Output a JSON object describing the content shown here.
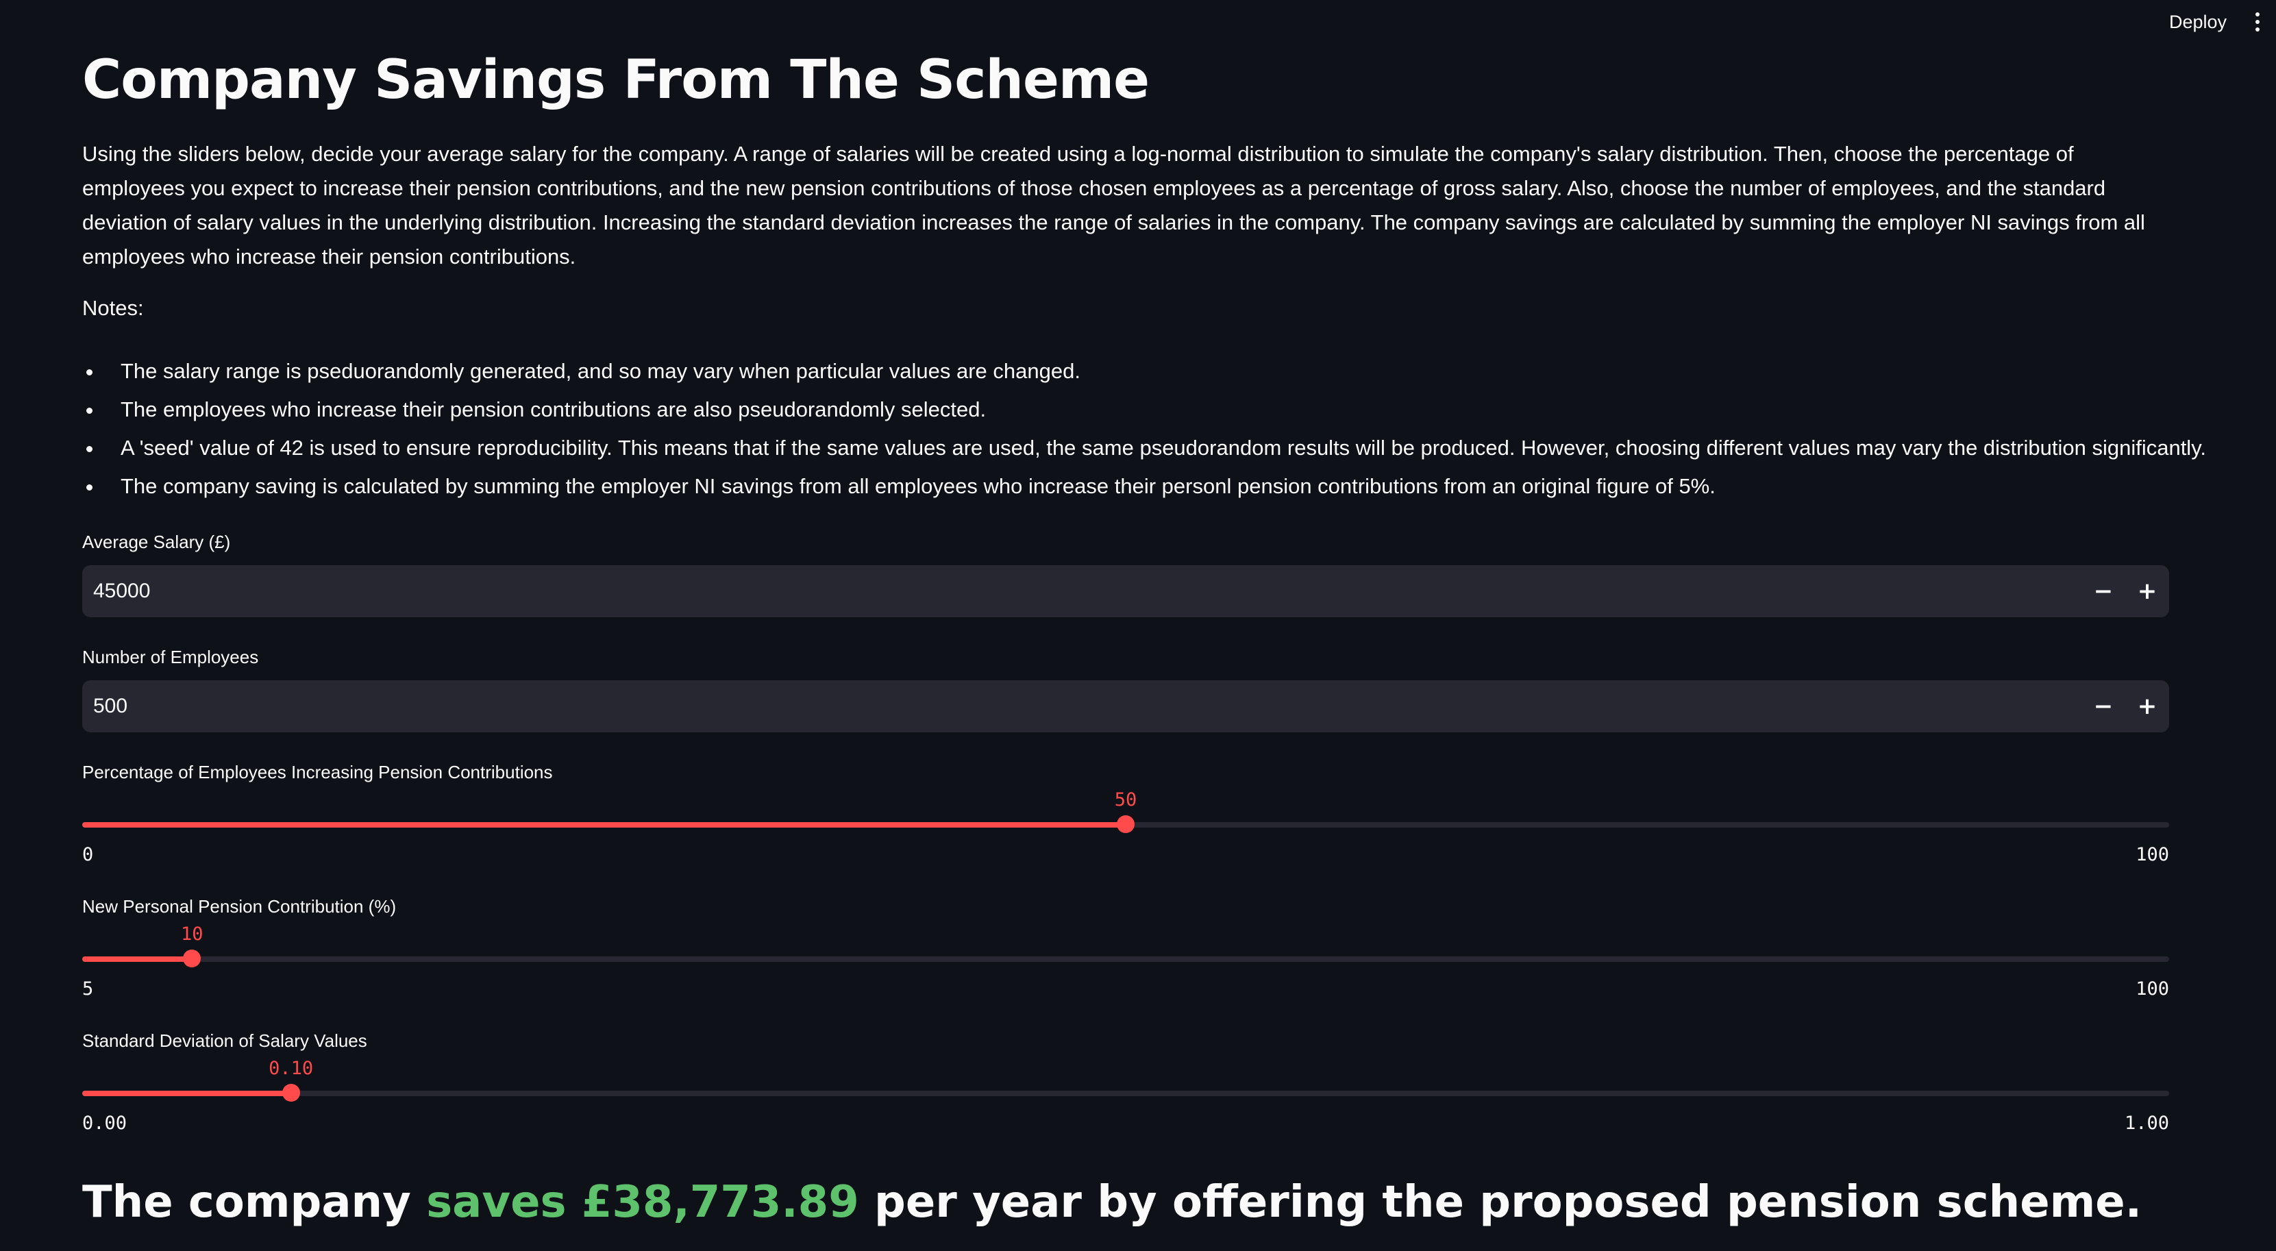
{
  "header": {
    "deploy_label": "Deploy",
    "menu_icon": "kebab-menu-icon"
  },
  "page": {
    "title": "Company Savings From The Scheme",
    "intro": "Using the sliders below, decide your average salary for the company. A range of salaries will be created using a log-normal distribution to simulate the company's salary distribution. Then, choose the percentage of employees you expect to increase their pension contributions, and the new pension contributions of those chosen employees as a percentage of gross salary. Also, choose the number of employees, and the standard deviation of salary values in the underlying distribution. Increasing the standard deviation increases the range of salaries in the company. The company savings are calculated by summing the employer NI savings from all employees who increase their pension contributions.",
    "notes_label": "Notes:",
    "notes": [
      "The salary range is pseduorandomly generated, and so may vary when particular values are changed.",
      "The employees who increase their pension contributions are also pseudorandomly selected.",
      "A 'seed' value of 42 is used to ensure reproducibility. This means that if the same values are used, the same pseudorandom results will be produced. However, choosing different values may vary the distribution significantly.",
      "The company saving is calculated by summing the employer NI savings from all employees who increase their personl pension contributions from an original figure of 5%."
    ]
  },
  "inputs": {
    "average_salary": {
      "label": "Average Salary (£)",
      "value": "45000",
      "minus_label": "−",
      "plus_label": "+"
    },
    "num_employees": {
      "label": "Number of Employees",
      "value": "500",
      "minus_label": "−",
      "plus_label": "+"
    }
  },
  "sliders": {
    "pct_employees": {
      "label": "Percentage of Employees Increasing Pension Contributions",
      "value": 50,
      "value_label": "50",
      "min": 0,
      "max": 100,
      "min_label": "0",
      "max_label": "100"
    },
    "personal_contribution": {
      "label": "New Personal Pension Contribution (%)",
      "value": 10,
      "value_label": "10",
      "min": 5,
      "max": 100,
      "min_label": "5",
      "max_label": "100"
    },
    "std_dev": {
      "label": "Standard Deviation of Salary Values",
      "value": 0.1,
      "value_label": "0.10",
      "min": 0,
      "max": 1,
      "min_label": "0.00",
      "max_label": "1.00"
    }
  },
  "result": {
    "prefix": "The company",
    "highlight": "saves £38,773.89",
    "suffix": "per year by offering the proposed pension scheme."
  },
  "colors": {
    "background": "#0e1117",
    "accent": "#ff4b4b",
    "highlight_green": "#5ec16b",
    "input_bg": "#262730"
  }
}
